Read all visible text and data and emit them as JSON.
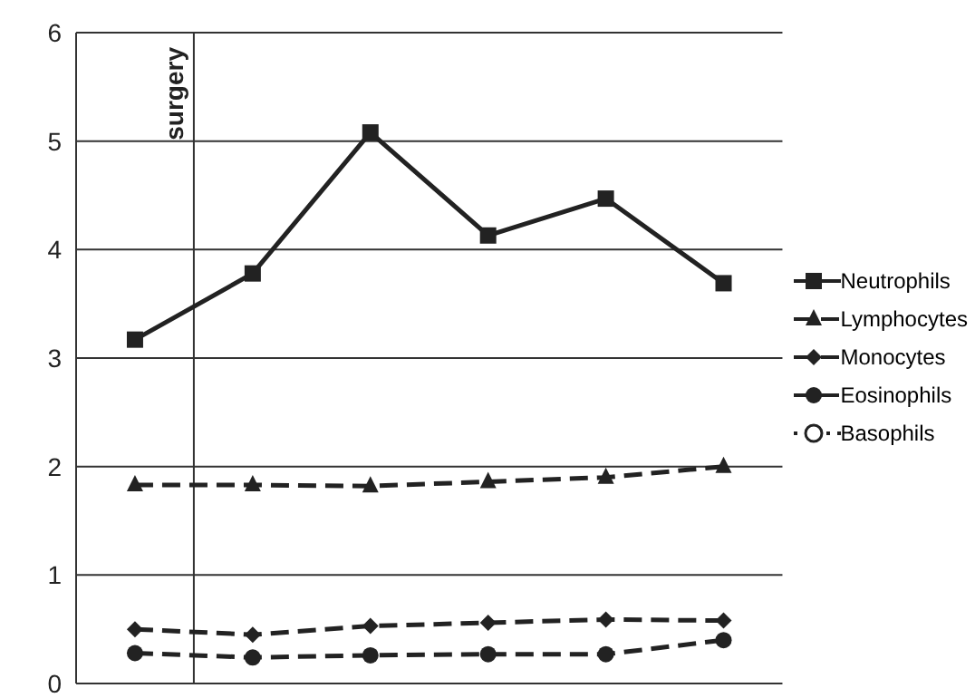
{
  "chart_data": {
    "type": "line",
    "categories": [
      null,
      null,
      null,
      null,
      null,
      null
    ],
    "ylim": [
      0,
      6
    ],
    "yticks": [
      0,
      1,
      2,
      3,
      4,
      5,
      6
    ],
    "grid": "y",
    "tick_labels": "y",
    "legend": "right",
    "annotations": [
      "surgery"
    ],
    "series": [
      {
        "name": "Neutrophils",
        "color": "#222222",
        "marker": "square",
        "line_style": "solid",
        "values": [
          3.17,
          3.78,
          5.08,
          4.13,
          4.47,
          3.69
        ]
      },
      {
        "name": "Lymphocytes",
        "color": "#222222",
        "marker": "triangle",
        "line_style": "dashed",
        "values": [
          1.83,
          1.83,
          1.82,
          1.86,
          1.9,
          2.0
        ]
      },
      {
        "name": "Monocytes",
        "color": "#222222",
        "marker": "diamond",
        "line_style": "dashed",
        "values": [
          0.5,
          0.45,
          0.53,
          0.56,
          0.59,
          0.58
        ]
      },
      {
        "name": "Eosinophils",
        "color": "#222222",
        "marker": "circle",
        "line_style": "dashed",
        "values": [
          0.28,
          0.24,
          0.26,
          0.27,
          0.27,
          0.4
        ]
      },
      {
        "name": "Basophils",
        "color": "#222222",
        "marker": "open-circle",
        "line_style": "dotted",
        "values": [
          null,
          null,
          null,
          null,
          null,
          null
        ]
      }
    ]
  }
}
